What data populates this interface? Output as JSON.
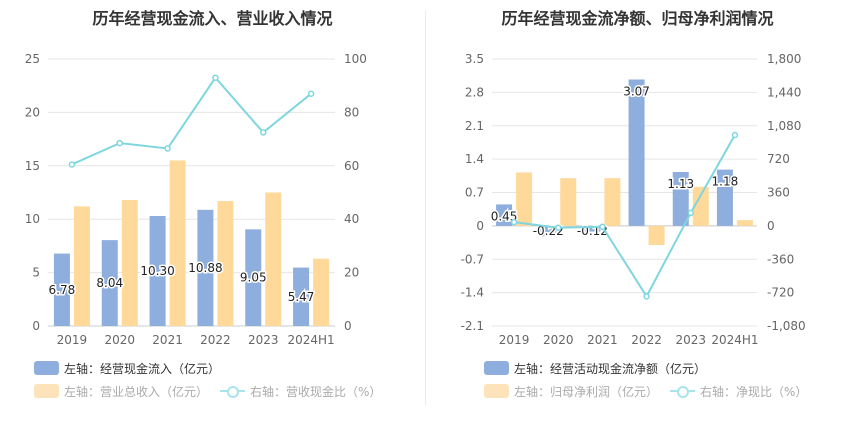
{
  "charts": [
    {
      "title": "历年经营现金流入、营业收入情况",
      "legend": [
        {
          "label": "左轴：经营现金流入（亿元）",
          "color": "#8eaedd"
        },
        {
          "label": "左轴：营业总收入（亿元）",
          "color": "#fde3b9"
        },
        {
          "label": "右轴：营收现金比（%）",
          "color": "#a8e4ea"
        }
      ]
    },
    {
      "title": "历年经营现金流净额、归母净利润情况",
      "legend": [
        {
          "label": "左轴：经营活动现金流净额（亿元）",
          "color": "#8eaedd"
        },
        {
          "label": "左轴：归母净利润（亿元）",
          "color": "#fde3b9"
        },
        {
          "label": "右轴：净现比（%）",
          "color": "#a8e4ea"
        }
      ]
    }
  ],
  "chart_data": [
    {
      "type": "bar",
      "title": "历年经营现金流入、营业收入情况",
      "categories": [
        "2019",
        "2020",
        "2021",
        "2022",
        "2023",
        "2024H1"
      ],
      "series": [
        {
          "name": "经营现金流入（亿元）",
          "axis": "left",
          "type": "bar",
          "color": "#8eaedd",
          "values": [
            6.78,
            8.04,
            10.3,
            10.88,
            9.05,
            5.47
          ],
          "labels": [
            "6.78",
            "8.04",
            "10.30",
            "10.88",
            "9.05",
            "5.47"
          ]
        },
        {
          "name": "营业总收入（亿元）",
          "axis": "left",
          "type": "bar",
          "color": "#ffd999",
          "values": [
            11.2,
            11.8,
            15.5,
            11.7,
            12.5,
            6.3
          ]
        },
        {
          "name": "营收现金比（%）",
          "axis": "right",
          "type": "line",
          "color": "#7fd6df",
          "values": [
            60.5,
            68.5,
            66.5,
            93.0,
            72.5,
            87.0
          ]
        }
      ],
      "left_axis": {
        "min": 0,
        "max": 25,
        "ticks": [
          "0",
          "5",
          "10",
          "15",
          "20",
          "25"
        ]
      },
      "right_axis": {
        "min": 0,
        "max": 100,
        "ticks": [
          "0",
          "20",
          "40",
          "60",
          "80",
          "100"
        ]
      },
      "grid": true,
      "legend_position": "bottom-left"
    },
    {
      "type": "bar",
      "title": "历年经营现金流净额、归母净利润情况",
      "categories": [
        "2019",
        "2020",
        "2021",
        "2022",
        "2023",
        "2024H1"
      ],
      "series": [
        {
          "name": "经营活动现金流净额（亿元）",
          "axis": "left",
          "type": "bar",
          "color": "#8eaedd",
          "values": [
            0.45,
            -0.22,
            -0.12,
            3.07,
            1.13,
            1.18
          ],
          "labels": [
            "0.45",
            "-0.22",
            "-0.12",
            "3.07",
            "1.13",
            "1.18"
          ]
        },
        {
          "name": "归母净利润（亿元）",
          "axis": "left",
          "type": "bar",
          "color": "#ffd999",
          "values": [
            1.12,
            1.0,
            1.0,
            -0.4,
            0.82,
            0.12
          ]
        },
        {
          "name": "净现比（%）",
          "axis": "right",
          "type": "line",
          "color": "#7fd6df",
          "values": [
            40,
            -20,
            -10,
            -760,
            140,
            980
          ]
        }
      ],
      "left_axis": {
        "min": -2.1,
        "max": 3.5,
        "ticks": [
          "-2.1",
          "-1.4",
          "-0.7",
          "0",
          "0.7",
          "1.4",
          "2.1",
          "2.8",
          "3.5"
        ]
      },
      "right_axis": {
        "min": -1080,
        "max": 1800,
        "ticks": [
          "-1,080",
          "-720",
          "-360",
          "0",
          "360",
          "720",
          "1,080",
          "1,440",
          "1,800"
        ]
      },
      "grid": true,
      "legend_position": "bottom-left"
    }
  ]
}
